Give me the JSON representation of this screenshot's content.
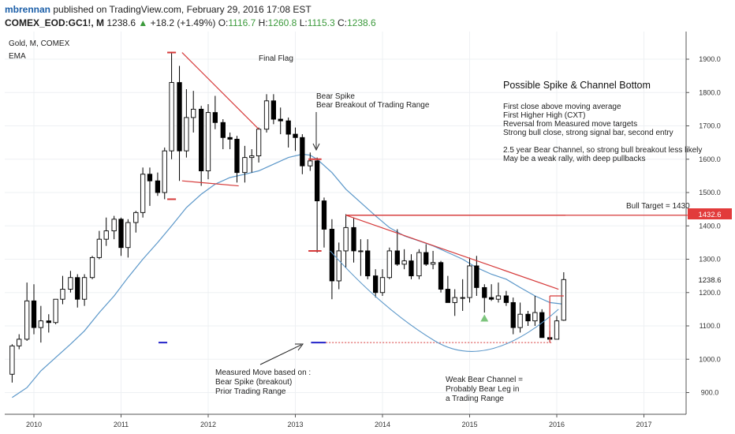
{
  "header": {
    "user": "mbrennan",
    "published_text": "published on TradingView.com, February 29, 2016 17:08 EST",
    "symbol": "COMEX_EOD:GC1!, M",
    "last": "1238.6",
    "change": "+18.2 (+1.49%)",
    "o_label": "O:",
    "o_value": "1116.7",
    "h_label": "H:",
    "h_value": "1260.8",
    "l_label": "L:",
    "l_value": "1115.3",
    "c_label": "C:",
    "c_value": "1238.6"
  },
  "legend": {
    "instrument": "Gold, M, COMEX",
    "indicator": "EMA"
  },
  "colors": {
    "up": "#ffffff",
    "down": "#000000",
    "ema": "#5b97c9",
    "annotation": "#d63a3a",
    "marker_blue": "#2323c9",
    "up_triangle": "#7cc47c",
    "badge": "#e23b3b"
  },
  "annotations": {
    "final_flag": "Final Flag",
    "bear_spike": [
      "Bear Spike",
      "Bear Breakout of Trading Range"
    ],
    "spike_title": "Possible Spike & Channel Bottom",
    "spike_lines": [
      "First close above moving average",
      "First Higher High (CXT)",
      "Reversal from Measured move targets",
      "Strong bull close, strong signal bar, second entry",
      "",
      "2.5 year Bear Channel, so strong bull breakout less likely",
      "May be a weak rally, with deep pullbacks"
    ],
    "bull_target": "Bull Target = 1430",
    "measured_move": [
      "Measured Move based on :",
      "Bear Spike (breakout)",
      "Prior Trading Range"
    ],
    "weak_channel": [
      "Weak Bear Channel =",
      "Probably Bear Leg in",
      "a Trading Range"
    ]
  },
  "price_badges": [
    "1432.6",
    "1238.6"
  ],
  "chart_data": {
    "type": "candlestick",
    "title": "Gold, M, COMEX",
    "x_ticks": [
      "2010",
      "2011",
      "2012",
      "2013",
      "2014",
      "2015",
      "2016",
      "2017"
    ],
    "y_ticks": [
      "900.0",
      "1000.0",
      "1100.0",
      "1200.0",
      "1300.0",
      "1400.0",
      "1500.0",
      "1600.0",
      "1700.0",
      "1800.0",
      "1900.0"
    ],
    "ylim": [
      855,
      1935
    ],
    "bull_target": 1430,
    "last_price": 1238.6,
    "ema_label": "EMA",
    "candles": [
      {
        "t": 2009.75,
        "o": 955,
        "h": 1045,
        "l": 930,
        "c": 1040
      },
      {
        "t": 2009.83,
        "o": 1040,
        "h": 1075,
        "l": 1030,
        "c": 1060
      },
      {
        "t": 2009.92,
        "o": 1060,
        "h": 1230,
        "l": 1055,
        "c": 1175
      },
      {
        "t": 2010.0,
        "o": 1175,
        "h": 1225,
        "l": 1075,
        "c": 1095
      },
      {
        "t": 2010.08,
        "o": 1095,
        "h": 1160,
        "l": 1050,
        "c": 1115
      },
      {
        "t": 2010.17,
        "o": 1115,
        "h": 1135,
        "l": 1080,
        "c": 1110
      },
      {
        "t": 2010.25,
        "o": 1110,
        "h": 1180,
        "l": 1105,
        "c": 1180
      },
      {
        "t": 2010.33,
        "o": 1180,
        "h": 1250,
        "l": 1165,
        "c": 1210
      },
      {
        "t": 2010.42,
        "o": 1210,
        "h": 1265,
        "l": 1200,
        "c": 1245
      },
      {
        "t": 2010.5,
        "o": 1245,
        "h": 1255,
        "l": 1155,
        "c": 1180
      },
      {
        "t": 2010.58,
        "o": 1180,
        "h": 1255,
        "l": 1160,
        "c": 1245
      },
      {
        "t": 2010.67,
        "o": 1245,
        "h": 1310,
        "l": 1240,
        "c": 1305
      },
      {
        "t": 2010.75,
        "o": 1305,
        "h": 1385,
        "l": 1300,
        "c": 1360
      },
      {
        "t": 2010.83,
        "o": 1360,
        "h": 1425,
        "l": 1340,
        "c": 1385
      },
      {
        "t": 2010.92,
        "o": 1385,
        "h": 1430,
        "l": 1360,
        "c": 1420
      },
      {
        "t": 2011.0,
        "o": 1420,
        "h": 1425,
        "l": 1310,
        "c": 1335
      },
      {
        "t": 2011.08,
        "o": 1335,
        "h": 1420,
        "l": 1305,
        "c": 1410
      },
      {
        "t": 2011.17,
        "o": 1410,
        "h": 1445,
        "l": 1380,
        "c": 1440
      },
      {
        "t": 2011.25,
        "o": 1440,
        "h": 1575,
        "l": 1425,
        "c": 1555
      },
      {
        "t": 2011.33,
        "o": 1555,
        "h": 1575,
        "l": 1460,
        "c": 1535
      },
      {
        "t": 2011.42,
        "o": 1535,
        "h": 1560,
        "l": 1490,
        "c": 1500
      },
      {
        "t": 2011.5,
        "o": 1500,
        "h": 1635,
        "l": 1480,
        "c": 1625
      },
      {
        "t": 2011.58,
        "o": 1625,
        "h": 1920,
        "l": 1600,
        "c": 1830
      },
      {
        "t": 2011.67,
        "o": 1830,
        "h": 1880,
        "l": 1535,
        "c": 1625
      },
      {
        "t": 2011.75,
        "o": 1625,
        "h": 1810,
        "l": 1605,
        "c": 1725
      },
      {
        "t": 2011.83,
        "o": 1725,
        "h": 1805,
        "l": 1680,
        "c": 1750
      },
      {
        "t": 2011.92,
        "o": 1750,
        "h": 1760,
        "l": 1520,
        "c": 1565
      },
      {
        "t": 2012.0,
        "o": 1565,
        "h": 1765,
        "l": 1540,
        "c": 1740
      },
      {
        "t": 2012.08,
        "o": 1740,
        "h": 1790,
        "l": 1690,
        "c": 1710
      },
      {
        "t": 2012.17,
        "o": 1710,
        "h": 1720,
        "l": 1630,
        "c": 1665
      },
      {
        "t": 2012.25,
        "o": 1665,
        "h": 1680,
        "l": 1630,
        "c": 1660
      },
      {
        "t": 2012.33,
        "o": 1660,
        "h": 1670,
        "l": 1530,
        "c": 1560
      },
      {
        "t": 2012.42,
        "o": 1560,
        "h": 1640,
        "l": 1530,
        "c": 1605
      },
      {
        "t": 2012.5,
        "o": 1605,
        "h": 1630,
        "l": 1560,
        "c": 1610
      },
      {
        "t": 2012.58,
        "o": 1610,
        "h": 1695,
        "l": 1590,
        "c": 1690
      },
      {
        "t": 2012.67,
        "o": 1690,
        "h": 1795,
        "l": 1680,
        "c": 1775
      },
      {
        "t": 2012.75,
        "o": 1775,
        "h": 1795,
        "l": 1705,
        "c": 1720
      },
      {
        "t": 2012.83,
        "o": 1720,
        "h": 1755,
        "l": 1675,
        "c": 1715
      },
      {
        "t": 2012.92,
        "o": 1715,
        "h": 1725,
        "l": 1635,
        "c": 1675
      },
      {
        "t": 2013.0,
        "o": 1675,
        "h": 1695,
        "l": 1625,
        "c": 1665
      },
      {
        "t": 2013.08,
        "o": 1665,
        "h": 1675,
        "l": 1555,
        "c": 1580
      },
      {
        "t": 2013.17,
        "o": 1580,
        "h": 1620,
        "l": 1565,
        "c": 1595
      },
      {
        "t": 2013.25,
        "o": 1595,
        "h": 1605,
        "l": 1320,
        "c": 1475
      },
      {
        "t": 2013.33,
        "o": 1475,
        "h": 1485,
        "l": 1335,
        "c": 1390
      },
      {
        "t": 2013.42,
        "o": 1390,
        "h": 1420,
        "l": 1180,
        "c": 1235
      },
      {
        "t": 2013.5,
        "o": 1235,
        "h": 1350,
        "l": 1210,
        "c": 1325
      },
      {
        "t": 2013.58,
        "o": 1325,
        "h": 1435,
        "l": 1275,
        "c": 1395
      },
      {
        "t": 2013.67,
        "o": 1395,
        "h": 1425,
        "l": 1290,
        "c": 1325
      },
      {
        "t": 2013.75,
        "o": 1325,
        "h": 1360,
        "l": 1250,
        "c": 1325
      },
      {
        "t": 2013.83,
        "o": 1325,
        "h": 1360,
        "l": 1240,
        "c": 1250
      },
      {
        "t": 2013.92,
        "o": 1250,
        "h": 1270,
        "l": 1185,
        "c": 1200
      },
      {
        "t": 2014.0,
        "o": 1200,
        "h": 1270,
        "l": 1190,
        "c": 1245
      },
      {
        "t": 2014.08,
        "o": 1245,
        "h": 1335,
        "l": 1240,
        "c": 1325
      },
      {
        "t": 2014.17,
        "o": 1325,
        "h": 1390,
        "l": 1280,
        "c": 1285
      },
      {
        "t": 2014.25,
        "o": 1285,
        "h": 1330,
        "l": 1270,
        "c": 1295
      },
      {
        "t": 2014.33,
        "o": 1295,
        "h": 1315,
        "l": 1240,
        "c": 1250
      },
      {
        "t": 2014.42,
        "o": 1250,
        "h": 1330,
        "l": 1240,
        "c": 1320
      },
      {
        "t": 2014.5,
        "o": 1320,
        "h": 1345,
        "l": 1280,
        "c": 1285
      },
      {
        "t": 2014.58,
        "o": 1285,
        "h": 1325,
        "l": 1270,
        "c": 1290
      },
      {
        "t": 2014.67,
        "o": 1290,
        "h": 1295,
        "l": 1200,
        "c": 1210
      },
      {
        "t": 2014.75,
        "o": 1210,
        "h": 1250,
        "l": 1180,
        "c": 1170
      },
      {
        "t": 2014.83,
        "o": 1170,
        "h": 1210,
        "l": 1130,
        "c": 1185
      },
      {
        "t": 2014.92,
        "o": 1185,
        "h": 1240,
        "l": 1145,
        "c": 1185
      },
      {
        "t": 2015.0,
        "o": 1185,
        "h": 1305,
        "l": 1170,
        "c": 1280
      },
      {
        "t": 2015.08,
        "o": 1280,
        "h": 1310,
        "l": 1190,
        "c": 1215
      },
      {
        "t": 2015.17,
        "o": 1215,
        "h": 1225,
        "l": 1140,
        "c": 1185
      },
      {
        "t": 2015.25,
        "o": 1185,
        "h": 1225,
        "l": 1175,
        "c": 1180
      },
      {
        "t": 2015.33,
        "o": 1180,
        "h": 1230,
        "l": 1170,
        "c": 1190
      },
      {
        "t": 2015.42,
        "o": 1190,
        "h": 1205,
        "l": 1160,
        "c": 1170
      },
      {
        "t": 2015.5,
        "o": 1170,
        "h": 1185,
        "l": 1075,
        "c": 1095
      },
      {
        "t": 2015.58,
        "o": 1095,
        "h": 1170,
        "l": 1080,
        "c": 1135
      },
      {
        "t": 2015.67,
        "o": 1135,
        "h": 1145,
        "l": 1100,
        "c": 1115
      },
      {
        "t": 2015.75,
        "o": 1115,
        "h": 1190,
        "l": 1100,
        "c": 1140
      },
      {
        "t": 2015.83,
        "o": 1140,
        "h": 1150,
        "l": 1065,
        "c": 1065
      },
      {
        "t": 2015.92,
        "o": 1065,
        "h": 1085,
        "l": 1050,
        "c": 1060
      },
      {
        "t": 2016.0,
        "o": 1060,
        "h": 1130,
        "l": 1060,
        "c": 1115
      },
      {
        "t": 2016.08,
        "o": 1117,
        "h": 1261,
        "l": 1115,
        "c": 1239
      }
    ],
    "ema": [
      [
        2009.75,
        885
      ],
      [
        2009.92,
        915
      ],
      [
        2010.08,
        965
      ],
      [
        2010.25,
        1005
      ],
      [
        2010.42,
        1045
      ],
      [
        2010.58,
        1085
      ],
      [
        2010.75,
        1140
      ],
      [
        2010.92,
        1190
      ],
      [
        2011.08,
        1245
      ],
      [
        2011.25,
        1300
      ],
      [
        2011.42,
        1350
      ],
      [
        2011.58,
        1400
      ],
      [
        2011.75,
        1455
      ],
      [
        2011.92,
        1495
      ],
      [
        2012.08,
        1525
      ],
      [
        2012.25,
        1545
      ],
      [
        2012.42,
        1555
      ],
      [
        2012.58,
        1565
      ],
      [
        2012.75,
        1585
      ],
      [
        2012.92,
        1605
      ],
      [
        2013.08,
        1615
      ],
      [
        2013.17,
        1612
      ],
      [
        2013.25,
        1600
      ],
      [
        2013.42,
        1560
      ],
      [
        2013.58,
        1510
      ],
      [
        2013.75,
        1470
      ],
      [
        2013.92,
        1430
      ],
      [
        2014.08,
        1395
      ],
      [
        2014.25,
        1370
      ],
      [
        2014.42,
        1355
      ],
      [
        2014.58,
        1340
      ],
      [
        2014.75,
        1320
      ],
      [
        2014.92,
        1300
      ],
      [
        2015.08,
        1275
      ],
      [
        2015.25,
        1255
      ],
      [
        2015.42,
        1240
      ],
      [
        2015.58,
        1215
      ],
      [
        2015.75,
        1190
      ],
      [
        2015.92,
        1170
      ],
      [
        2016.08,
        1165
      ]
    ]
  }
}
